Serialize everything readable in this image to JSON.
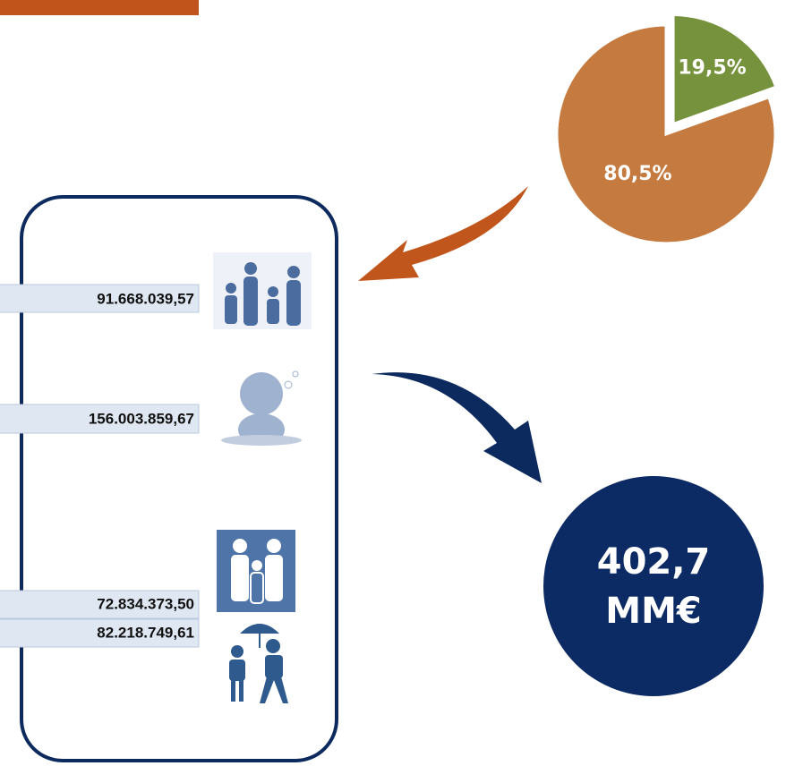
{
  "chart_data": {
    "type": "pie",
    "values": [
      19.5,
      80.5
    ],
    "value_labels": [
      "19,5%",
      "80,5%"
    ],
    "colors": [
      "#77923c",
      "#c57a40"
    ]
  },
  "amounts": [
    "91.668.039,57",
    "156.003.859,67",
    "72.834.373,50",
    "82.218.749,61"
  ],
  "total": [
    "402,7",
    "MM€"
  ]
}
